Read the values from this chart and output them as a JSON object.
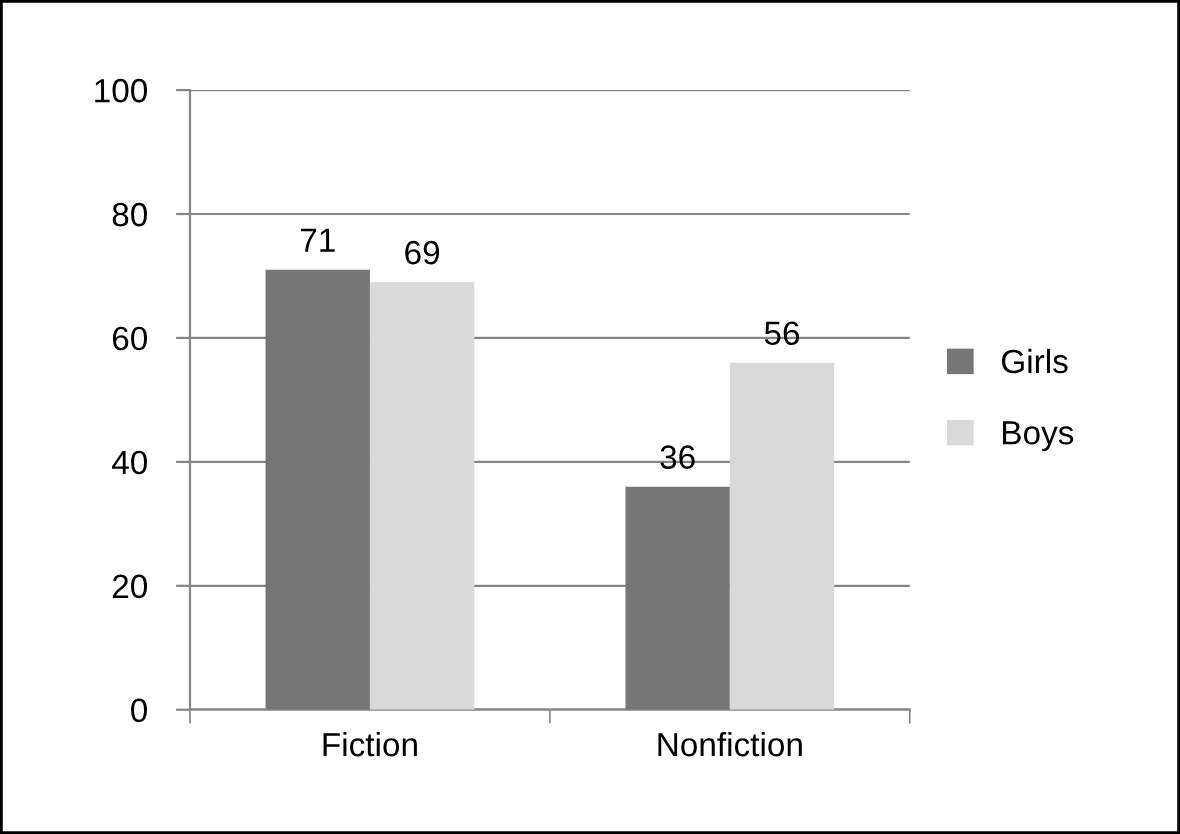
{
  "chart_data": {
    "type": "bar",
    "categories": [
      "Fiction",
      "Nonfiction"
    ],
    "series": [
      {
        "name": "Girls",
        "color": "#767676",
        "values": [
          71,
          36
        ]
      },
      {
        "name": "Boys",
        "color": "#d9d9d9",
        "values": [
          69,
          56
        ]
      }
    ],
    "ylim": [
      0,
      100
    ],
    "yticks": [
      0,
      20,
      40,
      60,
      80,
      100
    ],
    "grid": "y",
    "legend": "right",
    "data_labels": true
  }
}
